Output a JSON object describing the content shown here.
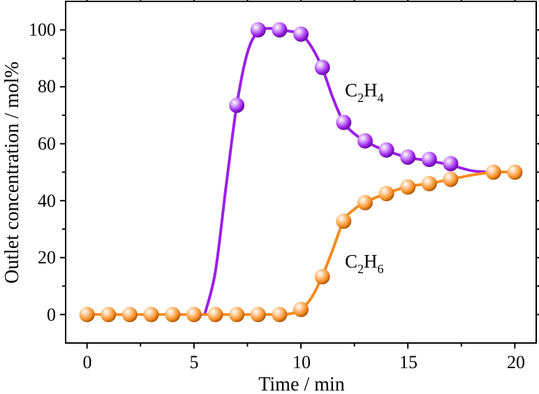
{
  "chart_data": {
    "type": "line",
    "title": "",
    "xlabel": "Time / min",
    "ylabel": "Outlet concentration / mol%",
    "xlim": [
      -1,
      21
    ],
    "ylim": [
      -10,
      110
    ],
    "xticks": [
      0,
      5,
      10,
      15,
      20
    ],
    "yticks": [
      0,
      20,
      40,
      60,
      80,
      100
    ],
    "x_tick_labels": [
      "0",
      "5",
      "10",
      "15",
      "20"
    ],
    "y_tick_labels": [
      "0",
      "20",
      "40",
      "60",
      "80",
      "100"
    ],
    "grid": false,
    "series": [
      {
        "name": "C2H4",
        "label_main": "C",
        "label_sub1": "2",
        "label_mid": "H",
        "label_sub2": "4",
        "color": "#9B1FE8",
        "curve": [
          [
            5.5,
            0
          ],
          [
            6,
            15
          ],
          [
            6.5,
            45
          ],
          [
            7,
            73.5
          ],
          [
            7.5,
            92
          ],
          [
            8,
            99.5
          ],
          [
            8.5,
            100.5
          ],
          [
            9,
            100
          ],
          [
            9.5,
            99.5
          ],
          [
            10,
            98.5
          ],
          [
            10.5,
            94
          ],
          [
            11,
            86.5
          ],
          [
            11.5,
            76
          ],
          [
            12,
            67.5
          ],
          [
            12.5,
            63.5
          ],
          [
            13,
            61
          ],
          [
            13.5,
            59
          ],
          [
            14,
            57.5
          ],
          [
            15,
            55.2
          ],
          [
            16,
            54
          ],
          [
            17,
            52.5
          ],
          [
            18,
            50.5
          ],
          [
            19,
            50
          ]
        ],
        "points": [
          {
            "x": 7,
            "y": 73.5
          },
          {
            "x": 8,
            "y": 100
          },
          {
            "x": 9,
            "y": 100
          },
          {
            "x": 10,
            "y": 98.5
          },
          {
            "x": 11,
            "y": 86.8
          },
          {
            "x": 12,
            "y": 67.5
          },
          {
            "x": 13,
            "y": 61
          },
          {
            "x": 14,
            "y": 57.8
          },
          {
            "x": 15,
            "y": 55.3
          },
          {
            "x": 16,
            "y": 54.5
          },
          {
            "x": 17,
            "y": 53
          }
        ]
      },
      {
        "name": "C2H6",
        "label_main": "C",
        "label_sub1": "2",
        "label_mid": "H",
        "label_sub2": "6",
        "color": "#F58A1F",
        "curve": [
          [
            0,
            0
          ],
          [
            1,
            0
          ],
          [
            2,
            0
          ],
          [
            3,
            0
          ],
          [
            4,
            0
          ],
          [
            5,
            0
          ],
          [
            6,
            0
          ],
          [
            7,
            0
          ],
          [
            8,
            0
          ],
          [
            9,
            0
          ],
          [
            9.5,
            0.3
          ],
          [
            10,
            1.8
          ],
          [
            10.5,
            6
          ],
          [
            11,
            13.5
          ],
          [
            11.5,
            23
          ],
          [
            12,
            33
          ],
          [
            12.5,
            37
          ],
          [
            13,
            39.5
          ],
          [
            14,
            42.5
          ],
          [
            15,
            45
          ],
          [
            16,
            46
          ],
          [
            17,
            47.5
          ],
          [
            18,
            49
          ],
          [
            19,
            50
          ],
          [
            20,
            50
          ]
        ],
        "points": [
          {
            "x": 0,
            "y": 0
          },
          {
            "x": 1,
            "y": 0
          },
          {
            "x": 2,
            "y": 0
          },
          {
            "x": 3,
            "y": 0
          },
          {
            "x": 4,
            "y": 0
          },
          {
            "x": 5,
            "y": 0
          },
          {
            "x": 6,
            "y": 0
          },
          {
            "x": 7,
            "y": 0
          },
          {
            "x": 8,
            "y": 0
          },
          {
            "x": 9,
            "y": 0
          },
          {
            "x": 10,
            "y": 1.8
          },
          {
            "x": 11,
            "y": 13.3
          },
          {
            "x": 12,
            "y": 32.8
          },
          {
            "x": 13,
            "y": 39.3
          },
          {
            "x": 14,
            "y": 42.5
          },
          {
            "x": 15,
            "y": 44.8
          },
          {
            "x": 16,
            "y": 46
          },
          {
            "x": 17,
            "y": 47.5
          },
          {
            "x": 19,
            "y": 50
          },
          {
            "x": 20,
            "y": 50
          }
        ]
      }
    ]
  }
}
